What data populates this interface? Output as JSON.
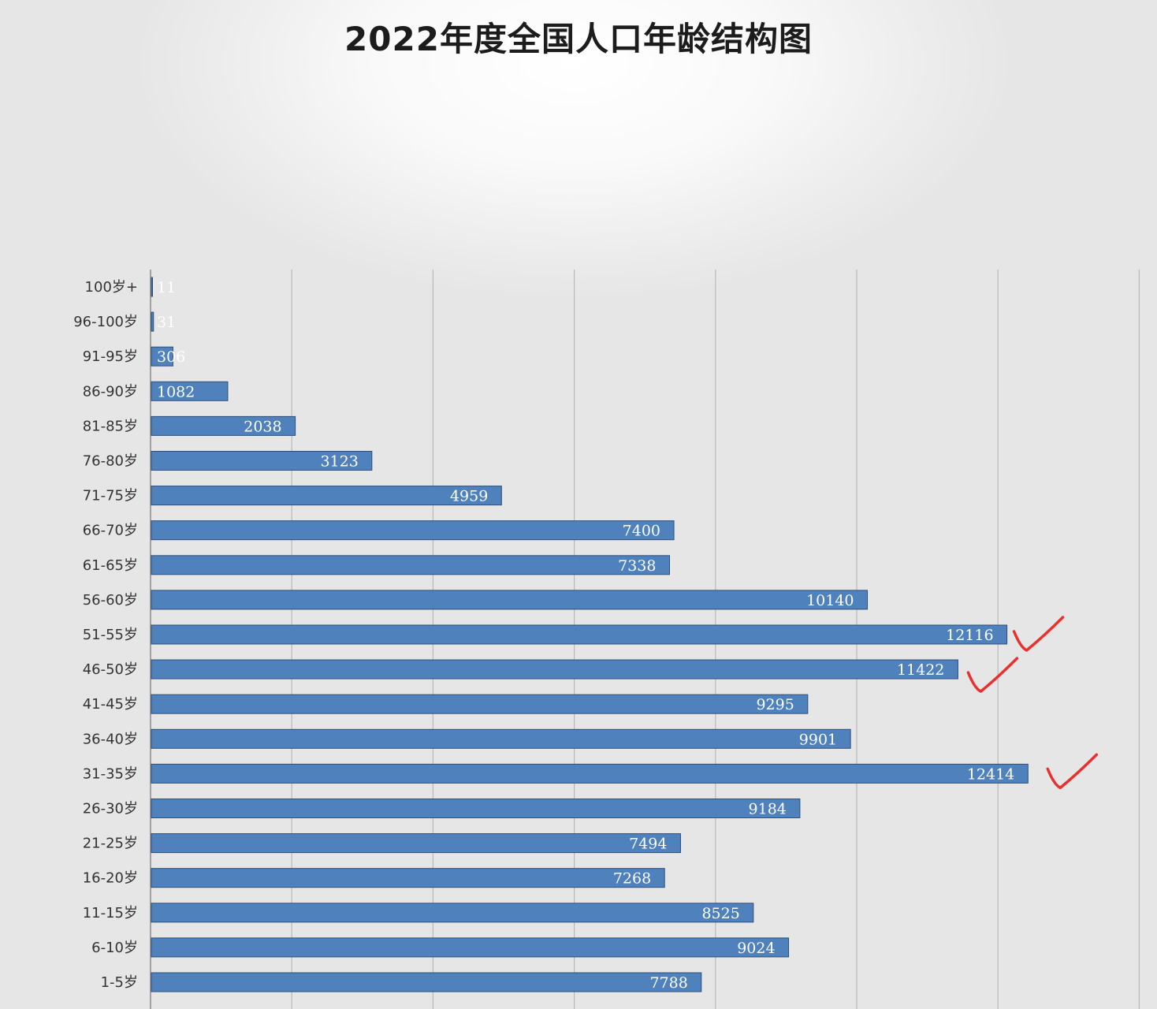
{
  "chart_data": {
    "type": "bar",
    "orientation": "horizontal",
    "title": "2022年度全国人口年龄结构图",
    "categories": [
      "100岁+",
      "96-100岁",
      "91-95岁",
      "86-90岁",
      "81-85岁",
      "76-80岁",
      "71-75岁",
      "66-70岁",
      "61-65岁",
      "56-60岁",
      "51-55岁",
      "46-50岁",
      "41-45岁",
      "36-40岁",
      "31-35岁",
      "26-30岁",
      "21-25岁",
      "16-20岁",
      "11-15岁",
      "6-10岁",
      "1-5岁"
    ],
    "values": [
      11,
      31,
      306,
      1082,
      2038,
      3123,
      4959,
      7400,
      7338,
      10140,
      12116,
      11422,
      9295,
      9901,
      12414,
      9184,
      7494,
      7268,
      8525,
      9024,
      7788
    ],
    "data_labels": [
      "11",
      "31",
      "306",
      "1082",
      "2038",
      "3123",
      "4959",
      "7400",
      "7338",
      "10140",
      "12116",
      "11422",
      "9295",
      "9901",
      "12414",
      "9184",
      "7494",
      "7268",
      "8525",
      "9024",
      "7788"
    ],
    "xlim": [
      0,
      14000
    ],
    "grid_step": 2000,
    "grid": true,
    "legend": false,
    "bar_color": "#4f81bd",
    "annotations": [
      {
        "type": "check-mark",
        "color": "#e8312f",
        "category": "51-55岁"
      },
      {
        "type": "check-mark",
        "color": "#e8312f",
        "category": "46-50岁"
      },
      {
        "type": "check-mark",
        "color": "#e8312f",
        "category": "31-35岁"
      }
    ]
  }
}
